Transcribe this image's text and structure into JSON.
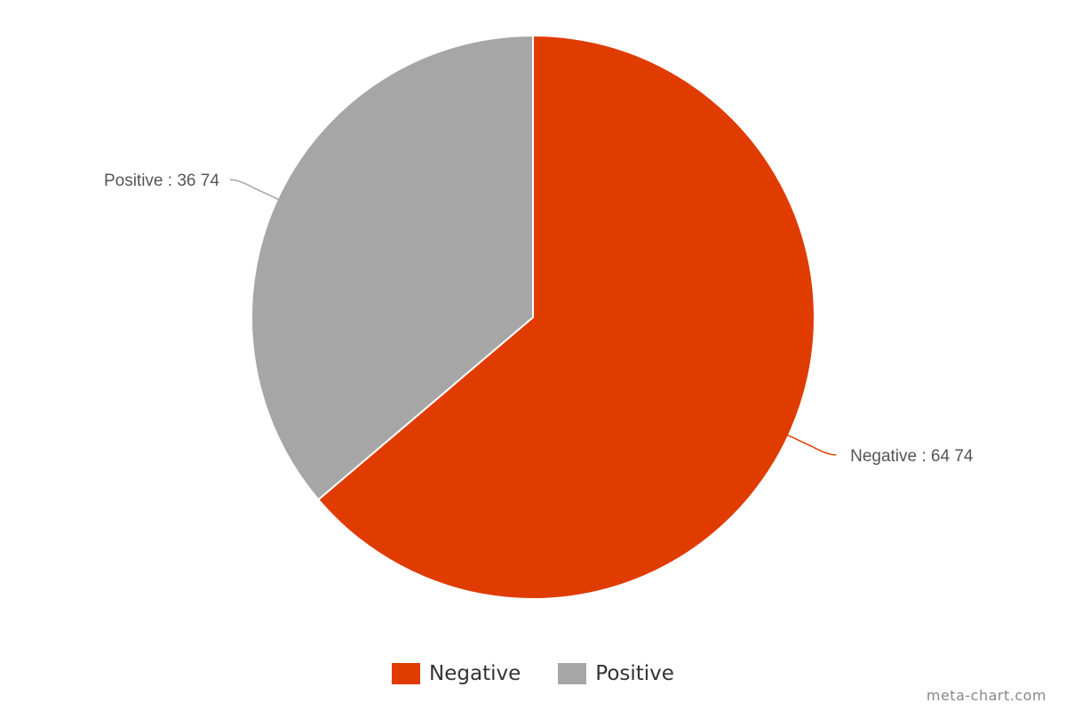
{
  "chart_data": {
    "type": "pie",
    "slices": [
      {
        "name": "Negative",
        "value": 64.74,
        "label": "Negative : 64 74",
        "color": "#e03c00"
      },
      {
        "name": "Positive",
        "value": 36.74,
        "label": "Positive : 36 74",
        "color": "#a6a6a6"
      }
    ],
    "legend": {
      "position": "bottom",
      "items": [
        {
          "name": "Negative",
          "color": "#e03c00"
        },
        {
          "name": "Positive",
          "color": "#a6a6a6"
        }
      ]
    },
    "start_angle_deg": 0,
    "direction": "clockwise"
  },
  "watermark": "meta-chart.com"
}
